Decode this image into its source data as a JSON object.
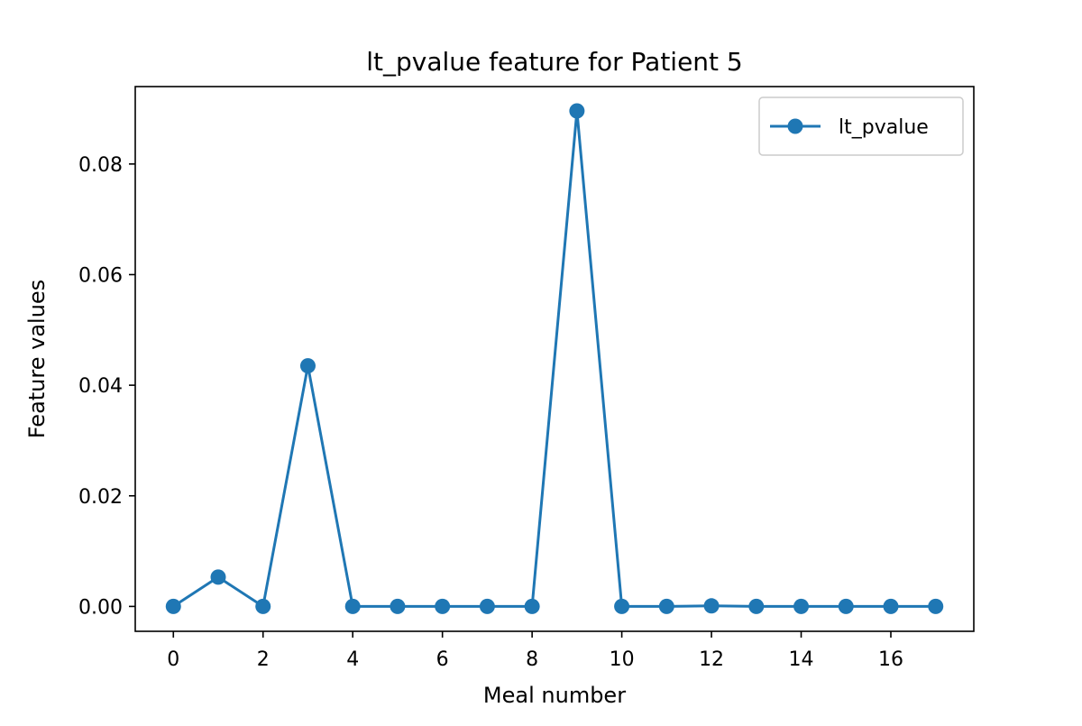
{
  "chart_data": {
    "type": "line",
    "title": "lt_pvalue feature for Patient 5",
    "xlabel": "Meal number",
    "ylabel": "Feature values",
    "xlim": [
      -0.85,
      17.85
    ],
    "ylim": [
      -0.0045,
      0.094
    ],
    "xticks": [
      0,
      2,
      4,
      6,
      8,
      10,
      12,
      14,
      16
    ],
    "xtick_labels": [
      "0",
      "2",
      "4",
      "6",
      "8",
      "10",
      "12",
      "14",
      "16"
    ],
    "yticks": [
      0,
      0.02,
      0.04,
      0.06,
      0.08
    ],
    "ytick_labels": [
      "0.00",
      "0.02",
      "0.04",
      "0.06",
      "0.08"
    ],
    "grid": false,
    "legend_position": "top-right",
    "series": [
      {
        "name": "lt_pvalue",
        "color": "#1f77b4",
        "marker": "circle",
        "x": [
          0,
          1,
          2,
          3,
          4,
          5,
          6,
          7,
          8,
          9,
          10,
          11,
          12,
          13,
          14,
          15,
          16,
          17
        ],
        "values": [
          0.0,
          0.0053,
          0.0,
          0.0435,
          0.0,
          0.0,
          0.0,
          0.0,
          0.0,
          0.0896,
          0.0,
          0.0,
          0.0001,
          0.0,
          0.0,
          0.0,
          0.0,
          0.0
        ]
      }
    ]
  }
}
